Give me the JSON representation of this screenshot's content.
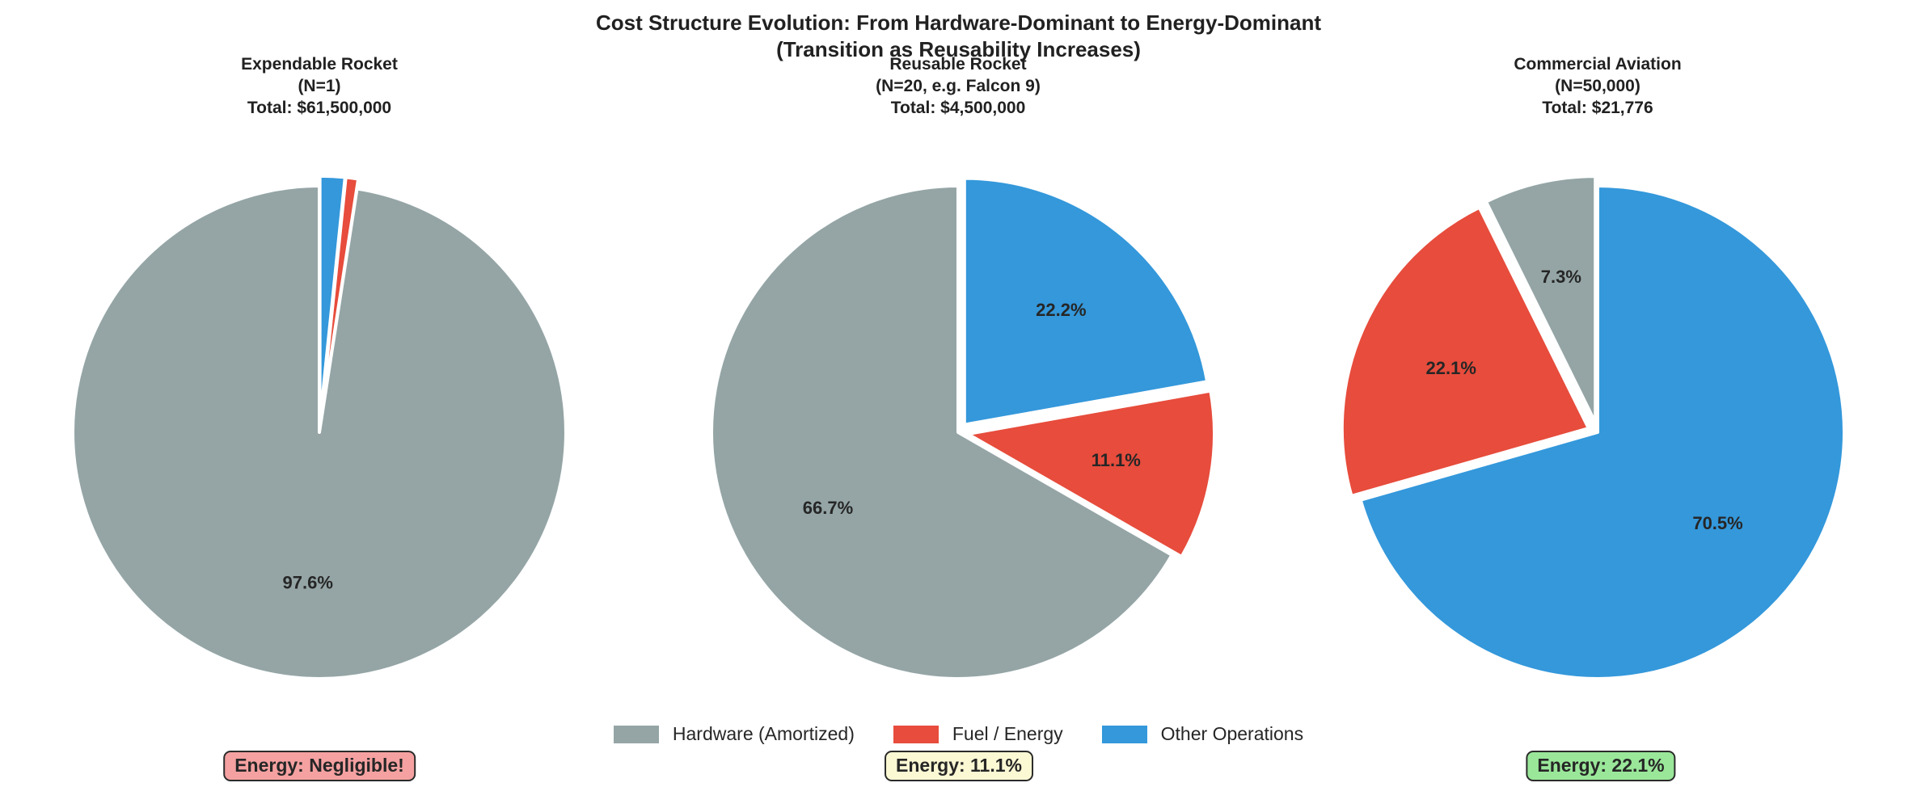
{
  "figure": {
    "title_line1": "Cost Structure Evolution: From Hardware-Dominant to Energy-Dominant",
    "title_line2": "(Transition as Reusability Increases)"
  },
  "legend": {
    "items": [
      {
        "label": "Hardware (Amortized)",
        "color": "#95a5a6"
      },
      {
        "label": "Fuel / Energy",
        "color": "#e74c3c"
      },
      {
        "label": "Other Operations",
        "color": "#3498db"
      }
    ]
  },
  "chart_data": [
    {
      "type": "pie",
      "title": "Expendable Rocket",
      "subtitle": "(N=1)",
      "total": "Total: $61,500,000",
      "start_angle": 90,
      "direction": "counterclockwise",
      "slices": [
        {
          "name": "Hardware (Amortized)",
          "pct": 97.56,
          "label": "97.6%",
          "color": "#95a5a6",
          "explode": 0
        },
        {
          "name": "Fuel / Energy",
          "pct": 0.81,
          "label": "",
          "color": "#e74c3c",
          "explode": 0.04
        },
        {
          "name": "Other Operations",
          "pct": 1.63,
          "label": "",
          "color": "#3498db",
          "explode": 0.04
        }
      ],
      "annotation": {
        "text": "Energy: Negligible!",
        "bg": "#f5a1a1"
      }
    },
    {
      "type": "pie",
      "title": "Reusable Rocket",
      "subtitle": "(N=20, e.g. Falcon 9)",
      "total": "Total: $4,500,000",
      "start_angle": 90,
      "direction": "counterclockwise",
      "slices": [
        {
          "name": "Hardware (Amortized)",
          "pct": 66.7,
          "label": "66.7%",
          "color": "#95a5a6",
          "explode": 0
        },
        {
          "name": "Fuel / Energy",
          "pct": 11.1,
          "label": "11.1%",
          "color": "#e74c3c",
          "explode": 0.04
        },
        {
          "name": "Other Operations",
          "pct": 22.2,
          "label": "22.2%",
          "color": "#3498db",
          "explode": 0.04
        }
      ],
      "annotation": {
        "text": "Energy: 11.1%",
        "bg": "#fbf8d4"
      }
    },
    {
      "type": "pie",
      "title": "Commercial Aviation",
      "subtitle": "(N=50,000)",
      "total": "Total: $21,776",
      "start_angle": 90,
      "direction": "counterclockwise",
      "slices": [
        {
          "name": "Hardware (Amortized)",
          "pct": 7.3,
          "label": "7.3%",
          "color": "#95a5a6",
          "explode": 0.04
        },
        {
          "name": "Fuel / Energy",
          "pct": 22.1,
          "label": "22.1%",
          "color": "#e74c3c",
          "explode": 0.04
        },
        {
          "name": "Other Operations",
          "pct": 70.5,
          "label": "70.5%",
          "color": "#3498db",
          "explode": 0
        }
      ],
      "annotation": {
        "text": "Energy: 22.1%",
        "bg": "#9ae79a"
      }
    }
  ]
}
